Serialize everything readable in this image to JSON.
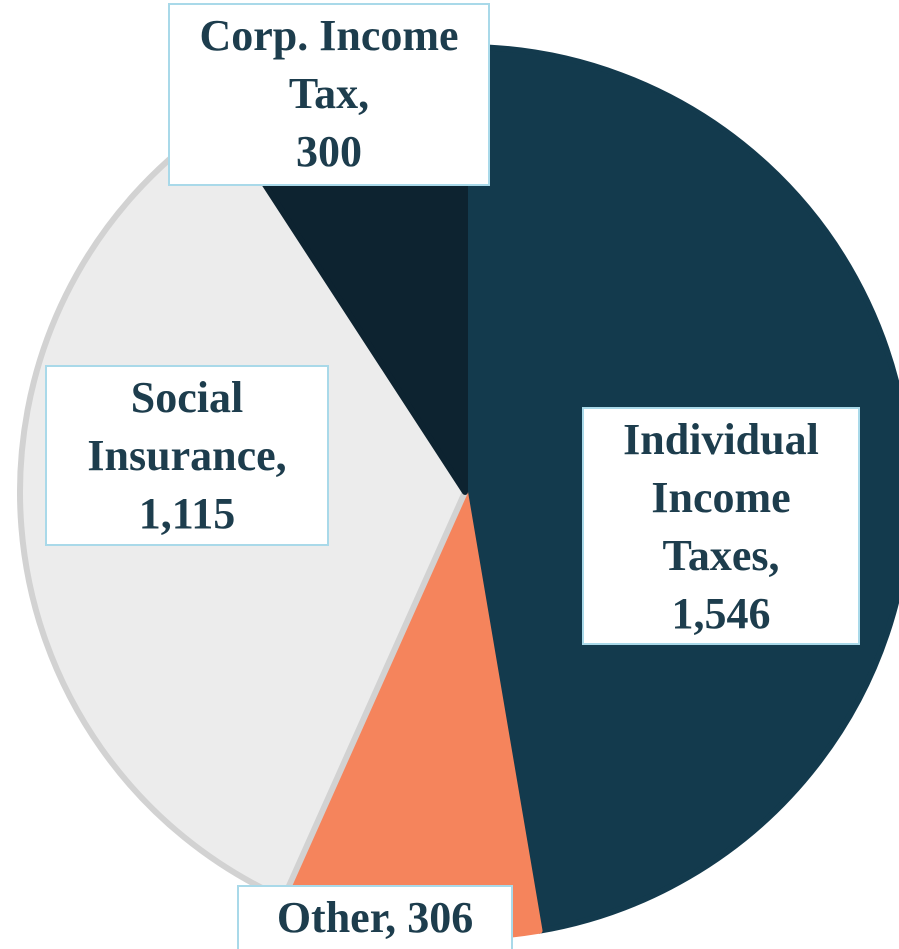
{
  "chart_data": {
    "type": "pie",
    "categories": [
      "Individual Income Taxes,",
      "Other,",
      "Social Insurance,",
      "Corp. Income Tax,"
    ],
    "values": [
      1546,
      306,
      1115,
      300
    ],
    "value_labels": [
      "1,546",
      "306",
      "1,115",
      "300"
    ],
    "colors": [
      "#133a4d",
      "#f5845c",
      "#ececec",
      "#0d2330"
    ],
    "start_angle": 0,
    "direction": "clockwise"
  }
}
